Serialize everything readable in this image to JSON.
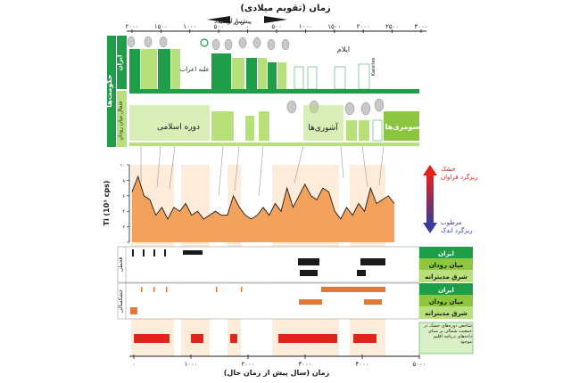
{
  "top_axis": {
    "title": "زمان (تقویم میلادی)",
    "bc_label": "پیش از میلاد",
    "ad_label": "پس از میلاد",
    "ticks": [
      "۲۰۰۰",
      "۱۵۰۰",
      "۱۰۰۰",
      "۵۰۰",
      "۰",
      "۵۰۰",
      "۱۰۰۰",
      "۱۵۰۰",
      "۲۰۰۰",
      "۲۵۰۰",
      "۳۰۰۰"
    ]
  },
  "bottom_axis": {
    "title": "زمان (سال پیش از زمان حال)",
    "ticks": [
      "۰",
      "۱۰۰۰",
      "۲۰۰۰",
      "۳۰۰۰",
      "۴۰۰۰",
      "۵۰۰۰"
    ]
  },
  "left_sidebar": {
    "governments": "حکومت‌ها",
    "iran": "ایران",
    "mesopotamia": "شمال میان رودان"
  },
  "era_labels": {
    "arab_conquest": "غلبه اعراب",
    "islamic_period": "دوره اسلامی",
    "assyrians": "آشوری‌ها",
    "sumerians": "سومری‌ها",
    "elam": "ایلام",
    "kassites": "Kassites"
  },
  "chart_labels": {
    "ylabel": "Ti (10³ cps)",
    "y_ticks": [
      "۰",
      "۱",
      "۲",
      "۳",
      "۴",
      "۵",
      "۶",
      "۷",
      "۸",
      "۹",
      "۱۰"
    ],
    "dry_high": "ریزگرد فراوان",
    "dry_high_tag": "خشک",
    "wet_low": "ریزگرد اندک",
    "wet_low_tag": "مرطوب"
  },
  "side_bands": {
    "drought": "قحطی",
    "drought_wet": "خشکسالی",
    "regions": [
      "ایران",
      "میان رودان",
      "شرق مدیترانه"
    ],
    "regions2": [
      "ایران",
      "میان رودان",
      "شرق مدیترانه"
    ]
  },
  "legend_note": "شاخص دوره‌های خشک در جمعیت شمالی بر مبنای داده‌های دریاچه اقلیم موجود",
  "colors": {
    "green": "#1f9e4a",
    "light_green": "#b7e07a",
    "orange": "#f2a25c",
    "peach": "#fde6cf",
    "red": "#e2231a",
    "dark": "#1a1a1a"
  },
  "chart_data": {
    "type": "line",
    "xlabel": "زمان (سال پیش از زمان حال)",
    "ylabel": "Ti (10³ cps)",
    "xlim": [
      0,
      5000
    ],
    "ylim": [
      0,
      10
    ],
    "x": [
      0,
      100,
      200,
      300,
      400,
      500,
      600,
      700,
      800,
      900,
      1000,
      1100,
      1200,
      1300,
      1400,
      1500,
      1600,
      1700,
      1800,
      1900,
      2000,
      2100,
      2200,
      2300,
      2400,
      2500,
      2600,
      2700,
      2800,
      2900,
      3000,
      3100,
      3200,
      3300,
      3400,
      3500,
      3600,
      3700,
      3800,
      3900,
      4000,
      4100,
      4200,
      4300,
      4400
    ],
    "y": [
      6.5,
      8.5,
      6.0,
      5.5,
      3.5,
      4.5,
      3.0,
      4.5,
      4.0,
      5.0,
      3.5,
      4.0,
      3.0,
      3.5,
      4.0,
      3.5,
      3.5,
      6.0,
      4.5,
      3.5,
      3.0,
      3.5,
      4.5,
      3.5,
      5.0,
      4.0,
      7.0,
      4.5,
      6.0,
      7.5,
      6.0,
      5.5,
      7.0,
      6.5,
      4.0,
      3.0,
      4.5,
      3.5,
      5.0,
      4.0,
      7.0,
      5.0,
      5.5,
      6.0,
      5.0
    ]
  }
}
